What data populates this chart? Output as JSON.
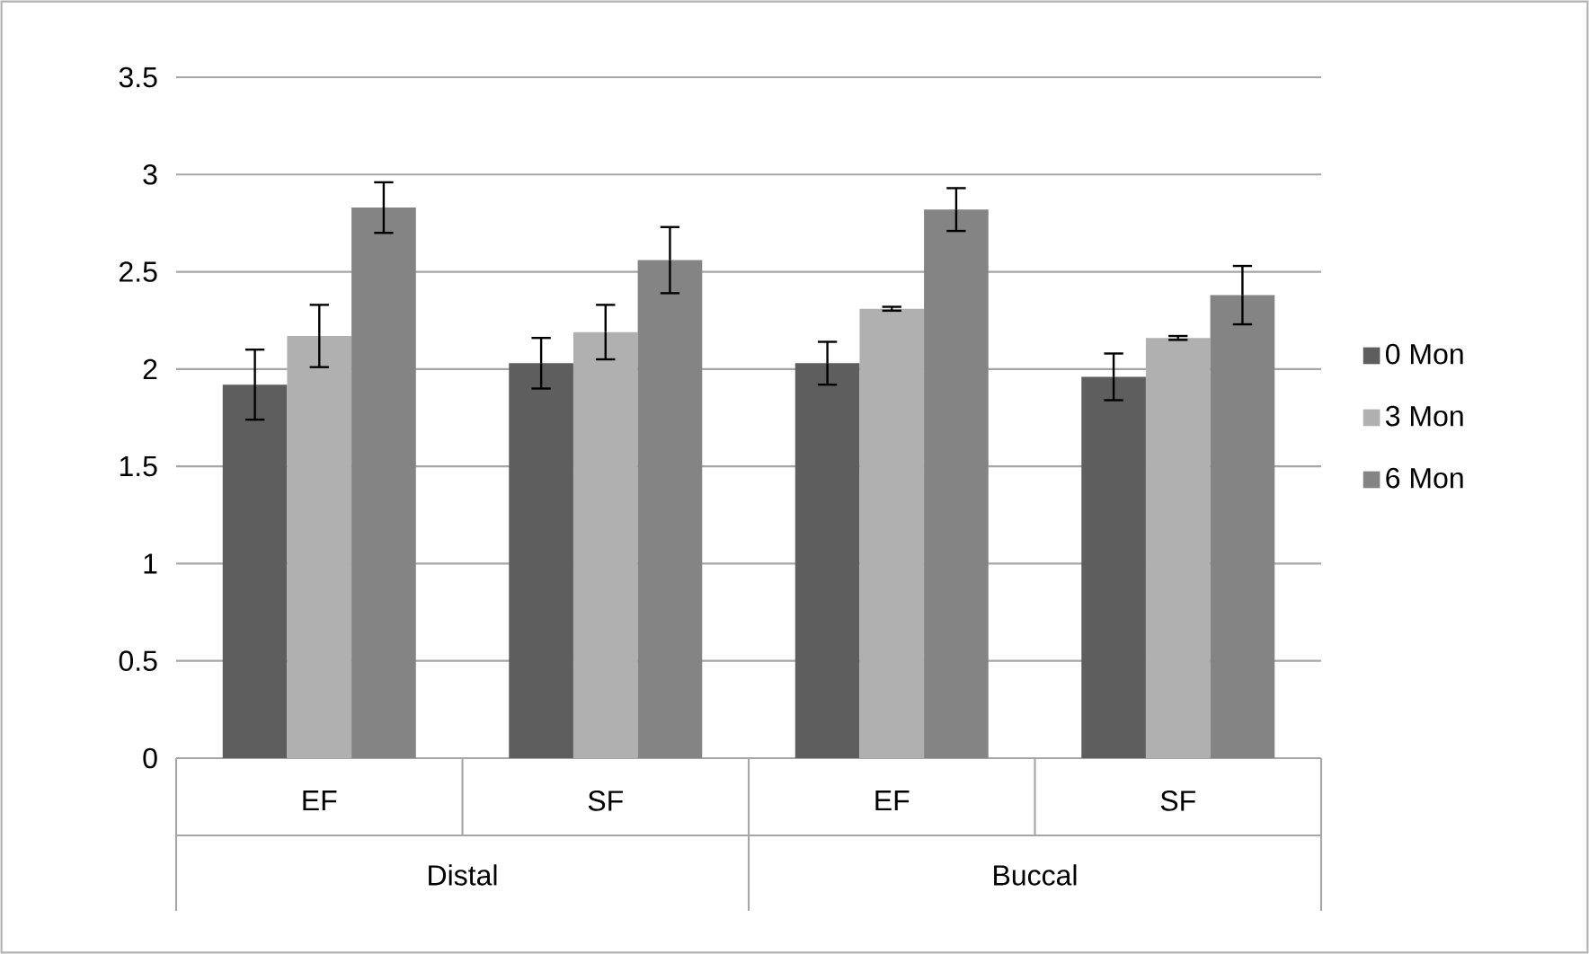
{
  "chart_data": {
    "type": "bar",
    "categories": [
      "EF",
      "SF",
      "EF",
      "SF"
    ],
    "annotations": [
      "Distal",
      "Buccal"
    ],
    "series": [
      {
        "name": "0 Mon",
        "color": "#5e5e5e",
        "values": [
          1.92,
          2.03,
          2.03,
          1.96
        ],
        "errors": [
          0.18,
          0.13,
          0.11,
          0.12
        ]
      },
      {
        "name": "3 Mon",
        "color": "#b0b0b0",
        "values": [
          2.17,
          2.19,
          2.31,
          2.16
        ],
        "errors": [
          0.16,
          0.14,
          0.01,
          0.01
        ]
      },
      {
        "name": "6 Mon",
        "color": "#848484",
        "values": [
          2.83,
          2.56,
          2.82,
          2.38
        ],
        "errors": [
          0.13,
          0.17,
          0.11,
          0.15
        ]
      }
    ],
    "ylim": [
      0,
      3.5
    ],
    "yticks": [
      0,
      0.5,
      1,
      1.5,
      2,
      2.5,
      3,
      3.5
    ],
    "grid": "y",
    "legend": "right"
  }
}
